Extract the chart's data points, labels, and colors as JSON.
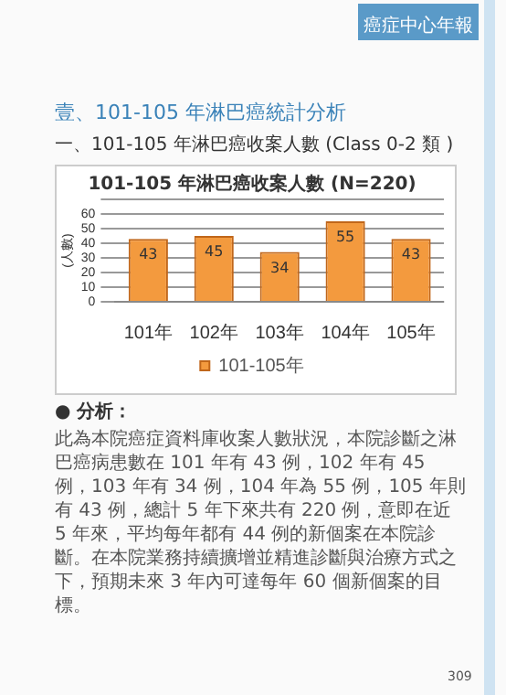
{
  "chart_data": {
    "type": "bar",
    "title": "101-105 年淋巴癌收案人數 (N=220)",
    "ylabel": "(人數)",
    "categories": [
      "101年",
      "102年",
      "103年",
      "104年",
      "105年"
    ],
    "series": [
      {
        "name": "101-105年",
        "color": "#f39a3e",
        "values": [
          43,
          45,
          34,
          55,
          43
        ]
      }
    ],
    "ylim": [
      0,
      70
    ],
    "yticks": [
      0,
      10,
      20,
      30,
      40,
      50,
      60,
      {
        "value": 70,
        "label": null
      }
    ],
    "grid": "y",
    "legend": "bottom",
    "data_labels": true,
    "annotations": [
      "癌症中心年報",
      "壹、101-105 年淋巴癌統計分析",
      "一、101-105 年淋巴癌收案人數 (Class 0-2 類 )",
      "● 分析：",
      "此為本院癌症資料庫收案人數狀況，本院診斷之淋巴癌病患數在 101 年有 43 例，102 年有 45 例，103 年有 34 例，104 年為 55 例，105 年則有 43 例，總計 5 年下來共有 220 例，意即在近 5 年來，平均每年都有 44 例的新個案在本院診斷。在本院業務持續擴增並精進診斷與治療方式之下，預期未來 3 年內可達每年 60 個新個案的目標。",
      "309"
    ]
  }
}
